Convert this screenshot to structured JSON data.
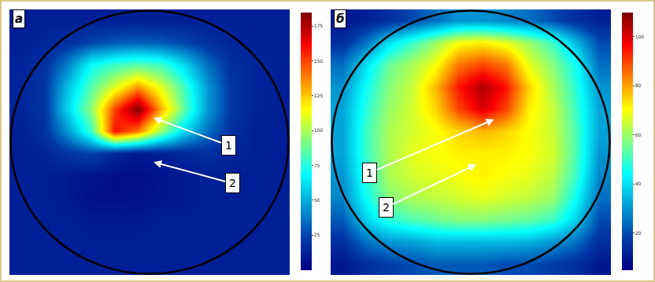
{
  "chart_data": [
    {
      "type": "heatmap",
      "title": "а",
      "annotations": [
        "1",
        "2"
      ],
      "tick_labels": false,
      "zlim": [
        0,
        185
      ],
      "zticks": [
        25,
        50,
        75,
        100,
        125,
        150,
        175
      ],
      "z": [
        [
          12,
          12,
          12,
          12,
          12,
          12,
          12,
          12,
          12,
          12,
          12,
          12
        ],
        [
          12,
          14,
          18,
          25,
          30,
          32,
          30,
          25,
          18,
          14,
          12,
          12
        ],
        [
          14,
          18,
          40,
          70,
          80,
          85,
          80,
          60,
          35,
          18,
          14,
          12
        ],
        [
          14,
          20,
          55,
          85,
          110,
          135,
          110,
          80,
          45,
          20,
          14,
          12
        ],
        [
          14,
          20,
          60,
          95,
          150,
          185,
          130,
          85,
          45,
          20,
          14,
          12
        ],
        [
          12,
          18,
          45,
          80,
          160,
          140,
          95,
          60,
          35,
          18,
          12,
          12
        ],
        [
          12,
          14,
          20,
          25,
          15,
          10,
          12,
          15,
          18,
          14,
          12,
          12
        ],
        [
          12,
          12,
          10,
          8,
          5,
          5,
          8,
          10,
          12,
          12,
          12,
          12
        ],
        [
          12,
          12,
          10,
          6,
          5,
          6,
          8,
          10,
          12,
          12,
          12,
          12
        ],
        [
          12,
          12,
          12,
          10,
          10,
          10,
          12,
          12,
          12,
          12,
          12,
          12
        ],
        [
          12,
          12,
          12,
          12,
          12,
          12,
          12,
          12,
          12,
          12,
          12,
          12
        ],
        [
          12,
          12,
          12,
          12,
          12,
          12,
          12,
          12,
          12,
          12,
          12,
          12
        ]
      ]
    },
    {
      "type": "heatmap",
      "title": "б",
      "annotations": [
        "1",
        "2"
      ],
      "tick_labels": false,
      "zlim": [
        5,
        110
      ],
      "zticks": [
        20,
        40,
        60,
        80,
        100
      ],
      "z": [
        [
          10,
          12,
          15,
          20,
          25,
          30,
          30,
          28,
          25,
          20,
          15,
          12
        ],
        [
          15,
          25,
          40,
          50,
          60,
          70,
          72,
          68,
          60,
          50,
          35,
          20
        ],
        [
          25,
          40,
          55,
          62,
          70,
          85,
          90,
          85,
          68,
          58,
          45,
          25
        ],
        [
          30,
          45,
          58,
          65,
          78,
          95,
          105,
          95,
          75,
          62,
          48,
          30
        ],
        [
          32,
          48,
          60,
          66,
          75,
          90,
          100,
          90,
          72,
          65,
          50,
          32
        ],
        [
          32,
          50,
          62,
          66,
          70,
          75,
          78,
          75,
          70,
          65,
          52,
          32
        ],
        [
          32,
          50,
          62,
          68,
          70,
          72,
          72,
          72,
          70,
          66,
          52,
          30
        ],
        [
          30,
          48,
          62,
          66,
          68,
          70,
          72,
          70,
          68,
          64,
          50,
          28
        ],
        [
          28,
          45,
          58,
          62,
          64,
          66,
          68,
          66,
          64,
          60,
          45,
          25
        ],
        [
          22,
          38,
          48,
          52,
          55,
          58,
          58,
          56,
          54,
          50,
          38,
          20
        ],
        [
          15,
          25,
          30,
          32,
          35,
          35,
          35,
          35,
          34,
          30,
          25,
          15
        ],
        [
          10,
          15,
          18,
          20,
          22,
          22,
          22,
          20,
          20,
          18,
          15,
          10
        ]
      ]
    }
  ]
}
